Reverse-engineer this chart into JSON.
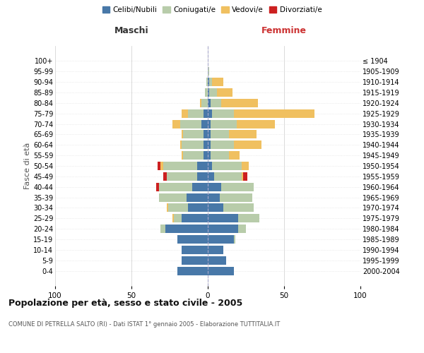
{
  "age_groups": [
    "0-4",
    "5-9",
    "10-14",
    "15-19",
    "20-24",
    "25-29",
    "30-34",
    "35-39",
    "40-44",
    "45-49",
    "50-54",
    "55-59",
    "60-64",
    "65-69",
    "70-74",
    "75-79",
    "80-84",
    "85-89",
    "90-94",
    "95-99",
    "100+"
  ],
  "birth_years": [
    "2000-2004",
    "1995-1999",
    "1990-1994",
    "1985-1989",
    "1980-1984",
    "1975-1979",
    "1970-1974",
    "1965-1969",
    "1960-1964",
    "1955-1959",
    "1950-1954",
    "1945-1949",
    "1940-1944",
    "1935-1939",
    "1930-1934",
    "1925-1929",
    "1920-1924",
    "1915-1919",
    "1910-1914",
    "1905-1909",
    "≤ 1904"
  ],
  "maschi": {
    "celibi": [
      20,
      17,
      17,
      20,
      28,
      17,
      13,
      14,
      10,
      7,
      7,
      3,
      3,
      3,
      4,
      3,
      0,
      0,
      0,
      0,
      0
    ],
    "coniugati": [
      0,
      0,
      0,
      0,
      3,
      5,
      13,
      18,
      22,
      20,
      22,
      13,
      14,
      13,
      14,
      10,
      4,
      2,
      1,
      0,
      0
    ],
    "vedovi": [
      0,
      0,
      0,
      0,
      0,
      1,
      1,
      0,
      0,
      0,
      2,
      1,
      1,
      1,
      5,
      4,
      1,
      0,
      0,
      0,
      0
    ],
    "divorziati": [
      0,
      0,
      0,
      0,
      0,
      0,
      0,
      0,
      2,
      2,
      2,
      0,
      0,
      0,
      0,
      0,
      0,
      0,
      0,
      0,
      0
    ]
  },
  "femmine": {
    "nubili": [
      17,
      12,
      10,
      17,
      20,
      20,
      10,
      8,
      9,
      4,
      3,
      2,
      2,
      2,
      2,
      3,
      2,
      1,
      1,
      0,
      0
    ],
    "coniugate": [
      0,
      0,
      0,
      1,
      5,
      14,
      20,
      21,
      21,
      18,
      19,
      12,
      15,
      12,
      17,
      14,
      7,
      5,
      2,
      1,
      0
    ],
    "vedove": [
      0,
      0,
      0,
      0,
      0,
      0,
      0,
      0,
      0,
      1,
      5,
      7,
      18,
      18,
      25,
      53,
      24,
      10,
      7,
      0,
      0
    ],
    "divorziate": [
      0,
      0,
      0,
      0,
      0,
      0,
      0,
      0,
      0,
      3,
      0,
      0,
      0,
      0,
      0,
      0,
      0,
      0,
      0,
      0,
      0
    ]
  },
  "colors": {
    "celibi_nubili": "#4878a8",
    "coniugati": "#b8ccaa",
    "vedovi": "#f0c060",
    "divorziati": "#cc2020"
  },
  "title": "Popolazione per età, sesso e stato civile - 2005",
  "subtitle": "COMUNE DI PETRELLA SALTO (RI) - Dati ISTAT 1° gennaio 2005 - Elaborazione TUTTITALIA.IT",
  "ylabel_left": "Fasce di età",
  "header_left": "Maschi",
  "header_right": "Femmine",
  "legend_labels": [
    "Celibi/Nubili",
    "Coniugati/e",
    "Vedovi/e",
    "Divorziati/e"
  ]
}
